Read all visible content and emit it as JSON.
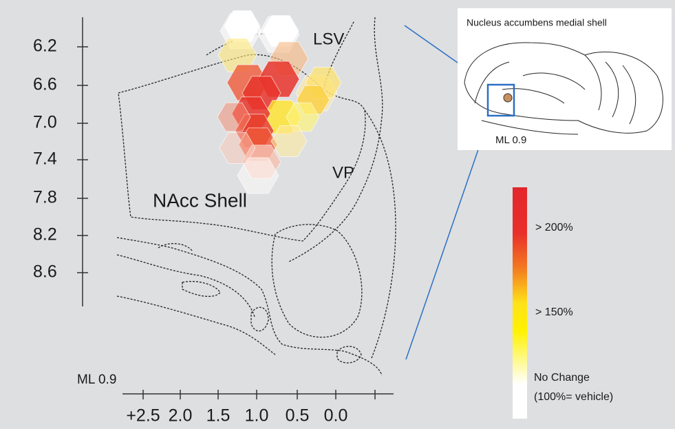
{
  "figure": {
    "y_axis": {
      "ticks": [
        "6.2",
        "6.6",
        "7.0",
        "7.4",
        "7.8",
        "8.2",
        "8.6"
      ]
    },
    "x_axis": {
      "label": "ML 0.9",
      "ticks": [
        "+2.5",
        "2.0",
        "1.5",
        "1.0",
        "0.5",
        "0.0"
      ]
    },
    "regions": [
      "LSV",
      "VP",
      "NAcc Shell"
    ],
    "inset": {
      "title": "Nucleus accumbens medial shell",
      "label": "ML 0.9"
    },
    "legend": {
      "labels": [
        "> 200%",
        "> 150%",
        "No Change",
        "(100%= vehicle)"
      ]
    }
  }
}
